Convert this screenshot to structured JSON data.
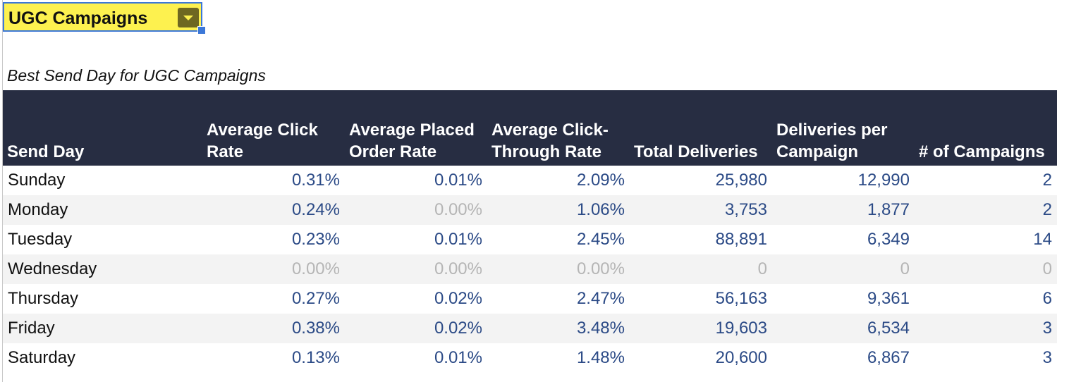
{
  "selected_cell": {
    "value": "UGC Campaigns"
  },
  "title": "Best Send Day for UGC Campaigns",
  "columns": [
    "Send Day",
    "Average Click Rate",
    "Average Placed Order Rate",
    "Average Click-Through Rate",
    "Total Deliveries",
    "Deliveries per Campaign",
    "# of Campaigns"
  ],
  "rows": [
    [
      "Sunday",
      "0.31%",
      "0.01%",
      "2.09%",
      "25,980",
      "12,990",
      "2"
    ],
    [
      "Monday",
      "0.24%",
      "0.00%",
      "1.06%",
      "3,753",
      "1,877",
      "2"
    ],
    [
      "Tuesday",
      "0.23%",
      "0.01%",
      "2.45%",
      "88,891",
      "6,349",
      "14"
    ],
    [
      "Wednesday",
      "0.00%",
      "0.00%",
      "0.00%",
      "0",
      "0",
      "0"
    ],
    [
      "Thursday",
      "0.27%",
      "0.02%",
      "2.47%",
      "56,163",
      "9,361",
      "6"
    ],
    [
      "Friday",
      "0.38%",
      "0.02%",
      "3.48%",
      "19,603",
      "6,534",
      "3"
    ],
    [
      "Saturday",
      "0.13%",
      "0.01%",
      "1.48%",
      "20,600",
      "6,867",
      "3"
    ]
  ],
  "colors": {
    "header_bg": "#272d42",
    "value_text": "#2b4a86",
    "zero_text": "#b5b5b5",
    "selected_fill": "#fdf14f",
    "selection_border": "#3c78d8"
  }
}
